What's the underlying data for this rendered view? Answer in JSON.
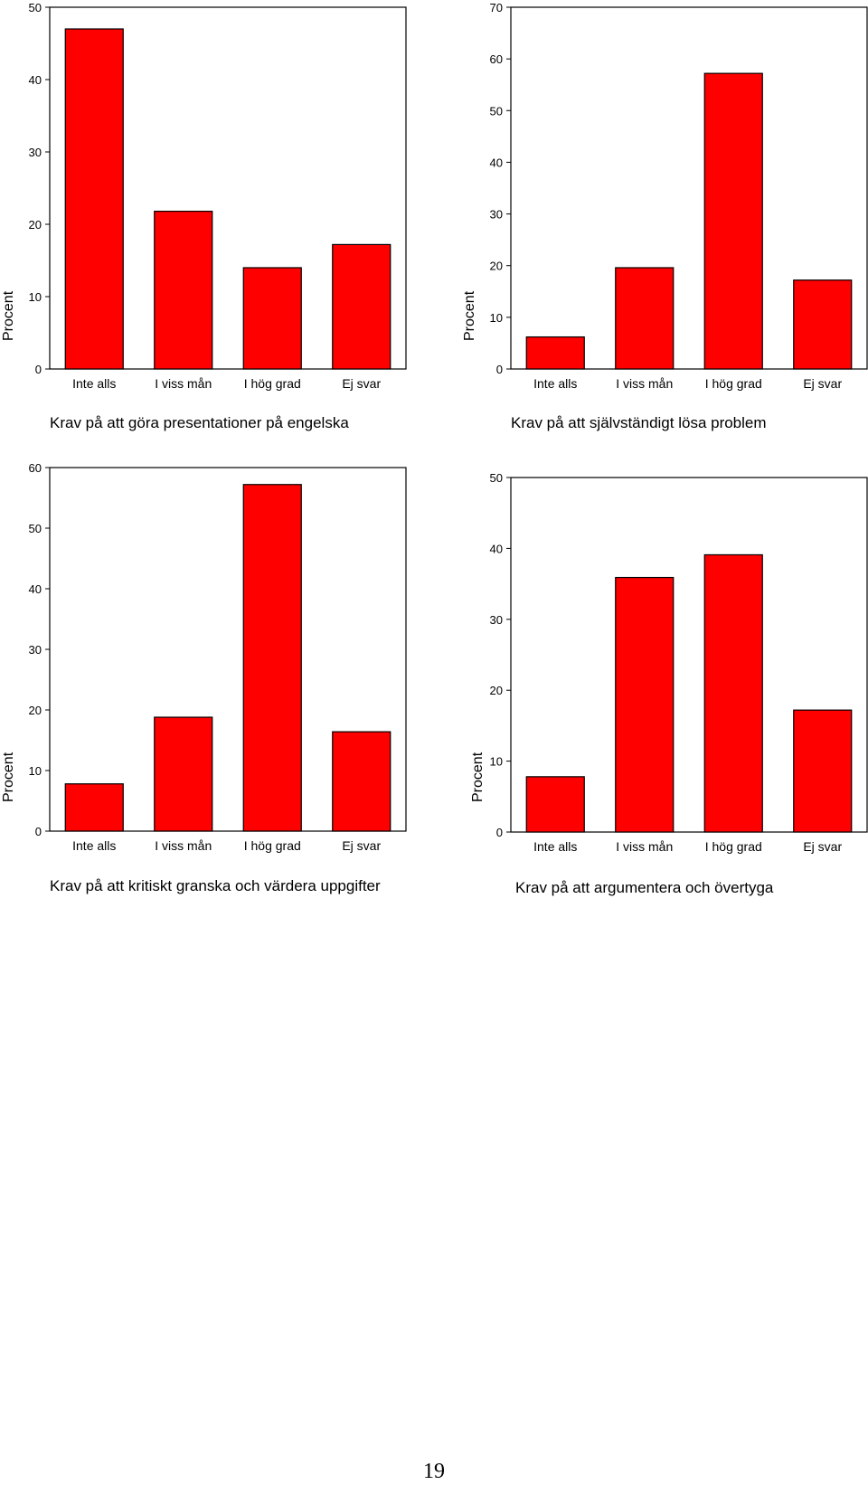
{
  "colors": {
    "bar": "#ff0000",
    "outline": "#000000",
    "text": "#000000",
    "background": "#ffffff"
  },
  "page": {
    "number": "19"
  },
  "chart_data": [
    {
      "type": "bar",
      "title": "Krav på att göra presentationer på engelska",
      "ylabel": "Procent",
      "xlabel": "",
      "categories": [
        "Inte alls",
        "I viss mån",
        "I hög grad",
        "Ej svar"
      ],
      "values": [
        47,
        21.8,
        14,
        17.2
      ],
      "ylim": [
        0,
        50
      ],
      "yticks": [
        0,
        10,
        20,
        30,
        40,
        50
      ],
      "grid": false
    },
    {
      "type": "bar",
      "title": "Krav på att självständigt lösa problem",
      "ylabel": "Procent",
      "xlabel": "",
      "categories": [
        "Inte alls",
        "I viss mån",
        "I hög grad",
        "Ej svar"
      ],
      "values": [
        6.2,
        19.6,
        57.2,
        17.2
      ],
      "ylim": [
        0,
        70
      ],
      "yticks": [
        0,
        10,
        20,
        30,
        40,
        50,
        60,
        70
      ],
      "grid": false
    },
    {
      "type": "bar",
      "title": "Krav på att kritiskt granska och värdera uppgifter",
      "ylabel": "Procent",
      "xlabel": "",
      "categories": [
        "Inte alls",
        "I viss mån",
        "I hög grad",
        "Ej svar"
      ],
      "values": [
        7.8,
        18.8,
        57.2,
        16.4
      ],
      "ylim": [
        0,
        60
      ],
      "yticks": [
        0,
        10,
        20,
        30,
        40,
        50,
        60
      ],
      "grid": false
    },
    {
      "type": "bar",
      "title": "Krav på att argumentera och övertyga",
      "ylabel": "Procent",
      "xlabel": "",
      "categories": [
        "Inte alls",
        "I viss mån",
        "I hög grad",
        "Ej svar"
      ],
      "values": [
        7.8,
        35.9,
        39.1,
        17.2
      ],
      "ylim": [
        0,
        50
      ],
      "yticks": [
        0,
        10,
        20,
        30,
        40,
        50
      ],
      "grid": false
    }
  ]
}
